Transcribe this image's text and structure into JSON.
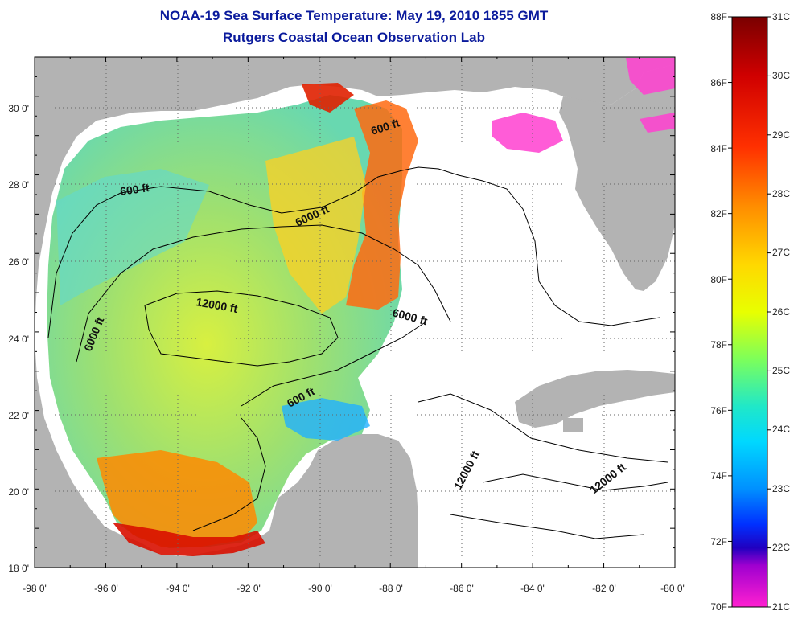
{
  "title": {
    "line1": "NOAA-19 Sea Surface Temperature:  May 19, 2010 1855 GMT",
    "line2": "Rutgers Coastal Ocean Observation Lab"
  },
  "axes": {
    "lon_labels": [
      "-98 0'",
      "-96 0'",
      "-94 0'",
      "-92 0'",
      "-90 0'",
      "-88 0'",
      "-86 0'",
      "-84 0'",
      "-82 0'",
      "-80 0'"
    ],
    "lat_labels": [
      "18 0'",
      "20 0'",
      "22 0'",
      "24 0'",
      "26 0'",
      "28 0'",
      "30 0'"
    ],
    "lon_range": [
      -98,
      -80
    ],
    "lat_range": [
      18,
      31
    ],
    "grid": "dotted"
  },
  "contour_labels": [
    {
      "text": "600 ft"
    },
    {
      "text": "600 ft"
    },
    {
      "text": "6000 ft"
    },
    {
      "text": "12000 ft"
    },
    {
      "text": "6000 ft"
    },
    {
      "text": "6000 ft"
    },
    {
      "text": "600 ft"
    },
    {
      "text": "12000 ft"
    },
    {
      "text": "12000 ft"
    }
  ],
  "colorbar": {
    "fahrenheit": [
      "88F",
      "86F",
      "84F",
      "82F",
      "80F",
      "78F",
      "76F",
      "74F",
      "72F",
      "70F"
    ],
    "celsius": [
      "31C",
      "30C",
      "29C",
      "28C",
      "27C",
      "26C",
      "25C",
      "24C",
      "23C",
      "22C",
      "21C"
    ],
    "colors": [
      "#7a0000",
      "#d00000",
      "#ff3000",
      "#ff8c00",
      "#ffd800",
      "#e8ff00",
      "#7dff5a",
      "#20e8c8",
      "#00d8ff",
      "#0090ff",
      "#0030ff",
      "#2000c0",
      "#a000d0",
      "#ff20d0"
    ]
  },
  "colors": {
    "land": "#b3b3b3",
    "no_data": "#ffffff",
    "title": "#0a1a9c"
  }
}
